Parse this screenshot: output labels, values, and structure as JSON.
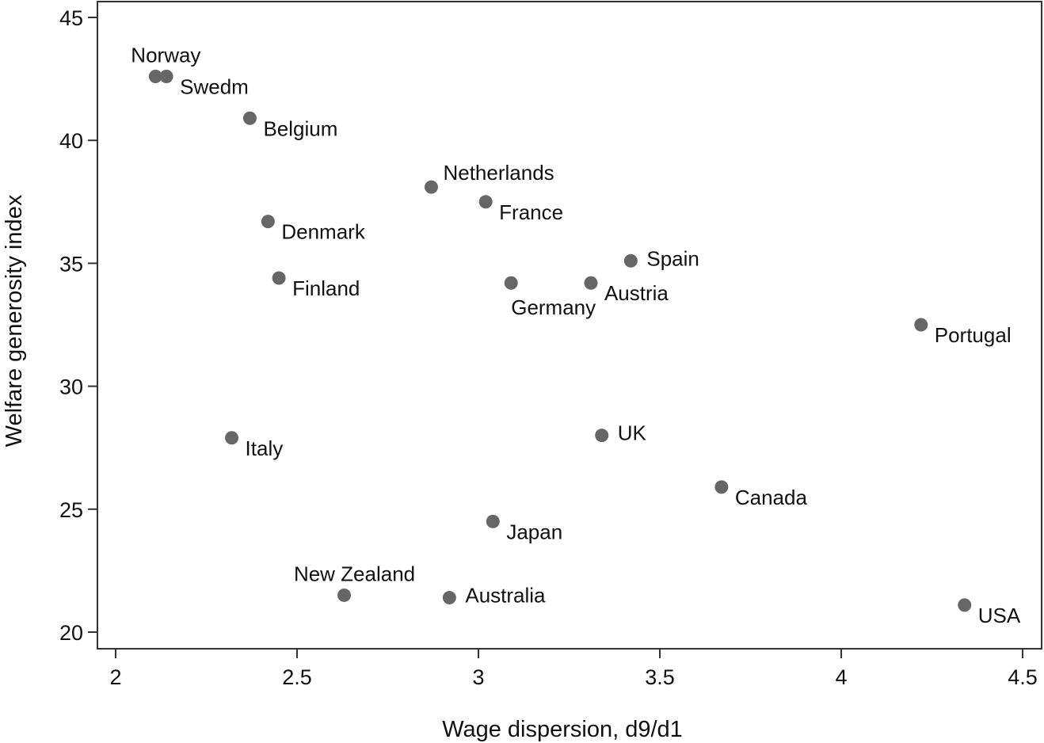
{
  "chart_data": {
    "type": "scatter",
    "title": "",
    "xlabel": "Wage dispersion, d9/d1",
    "ylabel": "Welfare generosity index",
    "xlim": [
      2,
      4.5
    ],
    "ylim": [
      20,
      45
    ],
    "xticks": [
      "2",
      "2.5",
      "3",
      "3.5",
      "4",
      "4.5"
    ],
    "yticks": [
      "20",
      "25",
      "30",
      "35",
      "40",
      "45"
    ],
    "grid": false,
    "legend": "none",
    "marker_color": "#666666",
    "points": [
      {
        "label": "Norway",
        "x": 2.11,
        "y": 42.6,
        "label_pos": "above"
      },
      {
        "label": "Swedm",
        "x": 2.14,
        "y": 42.6,
        "label_pos": "below-right"
      },
      {
        "label": "Belgium",
        "x": 2.37,
        "y": 40.9,
        "label_pos": "below-right"
      },
      {
        "label": "Denmark",
        "x": 2.42,
        "y": 36.7,
        "label_pos": "below-right"
      },
      {
        "label": "Finland",
        "x": 2.45,
        "y": 34.4,
        "label_pos": "below-right"
      },
      {
        "label": "Italy",
        "x": 2.32,
        "y": 27.9,
        "label_pos": "below-right"
      },
      {
        "label": "Netherlands",
        "x": 2.87,
        "y": 38.1,
        "label_pos": "above-right"
      },
      {
        "label": "France",
        "x": 3.02,
        "y": 37.5,
        "label_pos": "below-right"
      },
      {
        "label": "Germany",
        "x": 3.09,
        "y": 34.2,
        "label_pos": "below"
      },
      {
        "label": "Austria",
        "x": 3.31,
        "y": 34.2,
        "label_pos": "below-right"
      },
      {
        "label": "Spain",
        "x": 3.42,
        "y": 35.1,
        "label_pos": "right"
      },
      {
        "label": "Portugal",
        "x": 4.22,
        "y": 32.5,
        "label_pos": "below-right"
      },
      {
        "label": "UK",
        "x": 3.34,
        "y": 28.0,
        "label_pos": "right"
      },
      {
        "label": "Canada",
        "x": 3.67,
        "y": 25.9,
        "label_pos": "below-right"
      },
      {
        "label": "Japan",
        "x": 3.04,
        "y": 24.5,
        "label_pos": "below-right"
      },
      {
        "label": "New Zealand",
        "x": 2.63,
        "y": 21.5,
        "label_pos": "above"
      },
      {
        "label": "Australia",
        "x": 2.92,
        "y": 21.4,
        "label_pos": "right"
      },
      {
        "label": "USA",
        "x": 4.34,
        "y": 21.1,
        "label_pos": "below-right"
      }
    ]
  }
}
